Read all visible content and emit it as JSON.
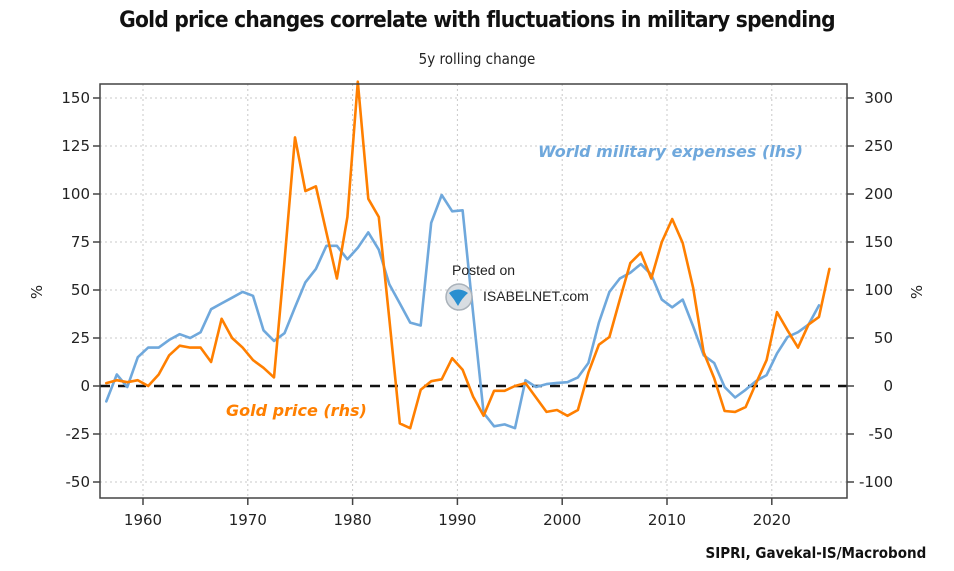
{
  "chart_data": {
    "type": "line",
    "title": "Gold price changes correlate with fluctuations in military spending",
    "subtitle": "5y rolling change",
    "source": "SIPRI, Gavekal-IS/Macrobond",
    "xlabel": "",
    "ylabel_left": "%",
    "ylabel_right": "%",
    "xlim": [
      1956,
      2026
    ],
    "ylim_left": [
      -55,
      160
    ],
    "ylim_right": [
      -110,
      320
    ],
    "x_ticks": [
      1960,
      1970,
      1980,
      1990,
      2000,
      2010,
      2020
    ],
    "x_tick_labels": [
      "1960",
      "1970",
      "1980",
      "1990",
      "2000",
      "2010",
      "2020"
    ],
    "y_ticks_left": [
      150,
      125,
      100,
      75,
      50,
      25,
      0,
      -25,
      -50
    ],
    "y_tick_labels_left": [
      "150",
      "125",
      "100",
      "75",
      "50",
      "25",
      "0",
      "-25",
      "-50"
    ],
    "y_ticks_right": [
      300,
      250,
      200,
      150,
      100,
      50,
      0,
      -50,
      -100
    ],
    "y_tick_labels_right": [
      "300",
      "250",
      "200",
      "150",
      "100",
      "50",
      "0",
      "-50",
      "-100"
    ],
    "grid": true,
    "zero_line": "dashed",
    "annotations": {
      "blue_label": "World military expenses (lhs)",
      "orange_label": "Gold price (rhs)",
      "watermark_line1": "Posted on",
      "watermark_line2": "ISABELNET.com"
    },
    "series": [
      {
        "name": "World military expenses (lhs)",
        "axis": "left",
        "color": "#6fa8dc",
        "x": [
          1956,
          1957,
          1958,
          1959,
          1960,
          1961,
          1962,
          1963,
          1964,
          1965,
          1966,
          1967,
          1968,
          1969,
          1970,
          1971,
          1972,
          1973,
          1974,
          1975,
          1976,
          1977,
          1978,
          1979,
          1980,
          1981,
          1982,
          1983,
          1984,
          1985,
          1986,
          1987,
          1988,
          1989,
          1990,
          1991,
          1992,
          1993,
          1994,
          1995,
          1996,
          1997,
          1998,
          1999,
          2000,
          2001,
          2002,
          2003,
          2004,
          2005,
          2006,
          2007,
          2008,
          2009,
          2010,
          2011,
          2012,
          2013,
          2014,
          2015,
          2016,
          2017,
          2018,
          2019,
          2020,
          2021,
          2022,
          2023,
          2024
        ],
        "values": [
          -8,
          6,
          -0.5,
          15,
          20,
          20,
          24,
          27,
          25,
          28,
          40,
          43,
          46,
          49,
          47,
          29,
          23.5,
          27.5,
          41,
          54,
          61,
          73,
          73,
          66,
          72,
          80,
          71,
          53,
          43,
          33,
          31.5,
          85,
          99.5,
          91,
          91.5,
          38,
          -14,
          -21,
          -20,
          -22,
          3,
          -0.5,
          1,
          1.6,
          2,
          4.5,
          12,
          33,
          49,
          56,
          59,
          63.5,
          58,
          45,
          41,
          45,
          31,
          16,
          12,
          -0.5,
          -6,
          -2,
          2.6,
          5.7,
          17,
          25.5,
          28,
          32,
          42
        ]
      },
      {
        "name": "Gold price (rhs)",
        "axis": "right",
        "color": "#ff7f00",
        "x": [
          1956,
          1957,
          1958,
          1959,
          1960,
          1961,
          1962,
          1963,
          1964,
          1965,
          1966,
          1967,
          1968,
          1969,
          1970,
          1971,
          1972,
          1973,
          1974,
          1975,
          1976,
          1977,
          1978,
          1979,
          1980,
          1981,
          1982,
          1983,
          1984,
          1985,
          1986,
          1987,
          1988,
          1989,
          1990,
          1991,
          1992,
          1993,
          1994,
          1995,
          1996,
          1997,
          1998,
          1999,
          2000,
          2001,
          2002,
          2003,
          2004,
          2005,
          2006,
          2007,
          2008,
          2009,
          2010,
          2011,
          2012,
          2013,
          2014,
          2015,
          2016,
          2017,
          2018,
          2019,
          2020,
          2021,
          2022,
          2023,
          2024,
          2025
        ],
        "values": [
          3,
          6,
          4,
          6,
          0,
          12,
          32,
          42,
          40,
          40,
          25,
          70,
          50,
          40,
          27,
          19,
          9,
          130,
          259,
          203,
          208,
          160,
          112,
          176,
          317,
          195,
          176,
          70,
          -39,
          -44,
          -4,
          5,
          7,
          29,
          17,
          -11,
          -31,
          -5,
          -5,
          0,
          3,
          -12,
          -27,
          -25,
          -31,
          -25,
          14,
          43,
          51,
          90,
          128,
          139,
          112,
          150,
          174,
          149,
          102,
          35,
          8,
          -26,
          -27,
          -22,
          3,
          27,
          77,
          58,
          40,
          64,
          72,
          122
        ]
      }
    ]
  }
}
